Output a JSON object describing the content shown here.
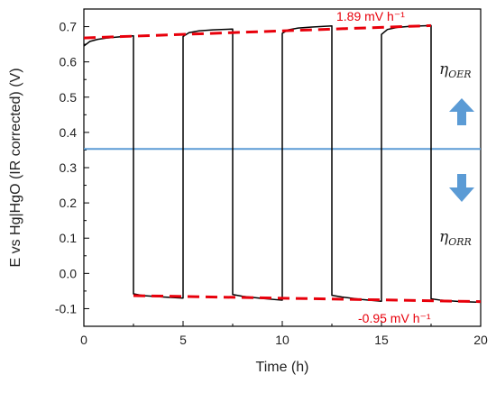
{
  "chart_data": {
    "type": "line",
    "xlabel": "Time (h)",
    "ylabel": "E vs Hg|HgO (IR corrected) (V)",
    "xlim": [
      0,
      20
    ],
    "ylim": [
      -0.15,
      0.75
    ],
    "x_ticks": [
      0,
      5,
      10,
      15,
      20
    ],
    "y_ticks": [
      -0.1,
      0.0,
      0.1,
      0.2,
      0.3,
      0.4,
      0.5,
      0.6,
      0.7
    ],
    "x_tick_labels": [
      "0",
      "5",
      "10",
      "15",
      "20"
    ],
    "y_tick_labels": [
      "-0.1",
      "0.0",
      "0.1",
      "0.2",
      "0.3",
      "0.4",
      "0.5",
      "0.6",
      "0.7"
    ],
    "grid": false,
    "colors": {
      "trace": "#000000",
      "fit": "#e8000b",
      "reference": "#5b9bd5",
      "arrow": "#5b9bd5"
    },
    "series": [
      {
        "role": "measured",
        "x": [
          0,
          0.3,
          0.7,
          1.2,
          1.8,
          2.5,
          2.5,
          3.0,
          4.0,
          5.0,
          5.0,
          5.3,
          5.8,
          6.5,
          7.5,
          7.5,
          8.0,
          9.0,
          10.0,
          10.0,
          10.3,
          10.8,
          11.5,
          12.5,
          12.5,
          13.0,
          14.0,
          15.0,
          15.0,
          15.3,
          15.8,
          16.5,
          17.5,
          17.5,
          18.0,
          19.0,
          20.0
        ],
        "y": [
          0.645,
          0.658,
          0.664,
          0.668,
          0.671,
          0.674,
          -0.058,
          -0.063,
          -0.067,
          -0.07,
          0.672,
          0.683,
          0.688,
          0.691,
          0.693,
          -0.06,
          -0.065,
          -0.071,
          -0.076,
          0.681,
          0.691,
          0.696,
          0.699,
          0.702,
          -0.062,
          -0.067,
          -0.074,
          -0.079,
          0.678,
          0.692,
          0.698,
          0.701,
          0.703,
          -0.072,
          -0.076,
          -0.08,
          -0.082
        ]
      },
      {
        "role": "oer-trend",
        "x": [
          0,
          17.5
        ],
        "y": [
          0.668,
          0.703
        ]
      },
      {
        "role": "orr-trend",
        "x": [
          2.5,
          20
        ],
        "y": [
          -0.063,
          -0.08
        ]
      },
      {
        "role": "reference",
        "x": [
          0,
          20
        ],
        "y": [
          0.353,
          0.353
        ]
      }
    ],
    "annotations": {
      "oer_rate": "1.89 mV h⁻¹",
      "orr_rate": "-0.95 mV h⁻¹",
      "eta_oer": {
        "base": "η",
        "sub": "OER"
      },
      "eta_orr": {
        "base": "η",
        "sub": "ORR"
      }
    }
  }
}
